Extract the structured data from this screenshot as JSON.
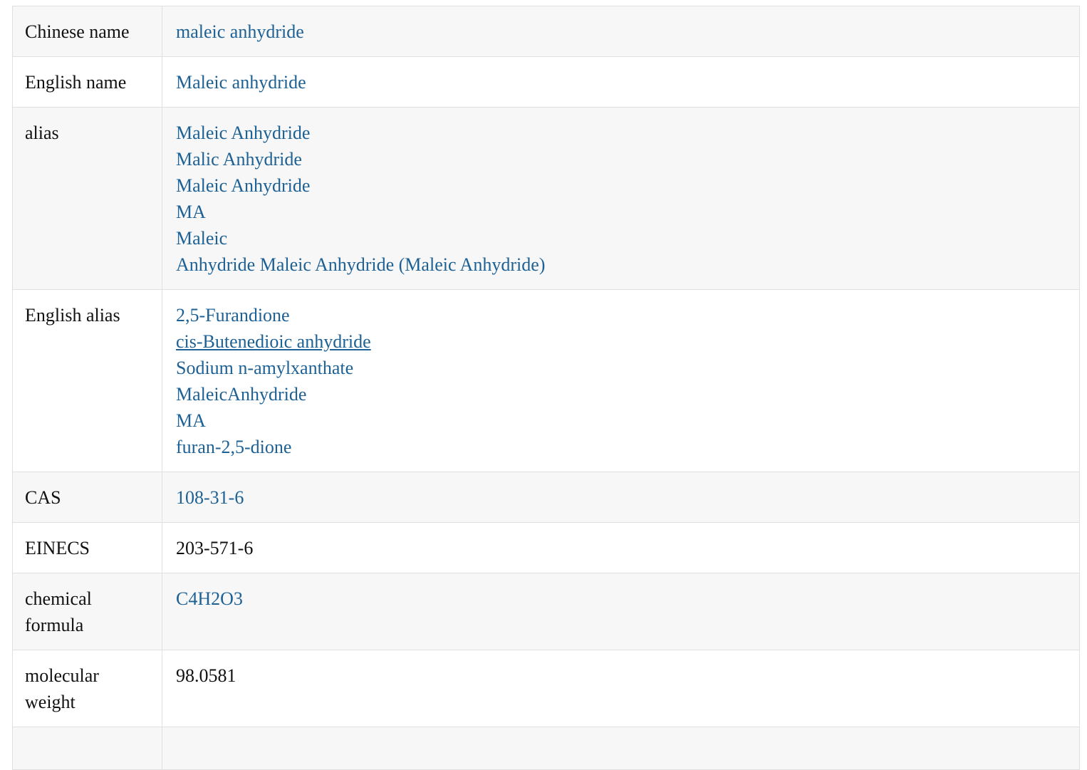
{
  "colors": {
    "link": "#1d6195",
    "text": "#111111",
    "alt_row_bg": "#f7f7f7",
    "border": "#e0e0e0"
  },
  "table": {
    "rows": [
      {
        "label": "Chinese name",
        "values": [
          {
            "text": "maleic anhydride",
            "link": true
          }
        ]
      },
      {
        "label": "English name",
        "values": [
          {
            "text": "Maleic anhydride",
            "link": true
          }
        ]
      },
      {
        "label": "alias",
        "values": [
          {
            "text": "Maleic Anhydride",
            "link": true
          },
          {
            "text": "Malic Anhydride",
            "link": true
          },
          {
            "text": "Maleic Anhydride",
            "link": true
          },
          {
            "text": "MA",
            "link": true
          },
          {
            "text": "Maleic",
            "link": true
          },
          {
            "text": "Anhydride Maleic Anhydride (Maleic Anhydride)",
            "link": true
          }
        ]
      },
      {
        "label": "English alias",
        "values": [
          {
            "text": "2,5-Furandione",
            "link": true
          },
          {
            "text": "cis-Butenedioic anhydride",
            "link": true,
            "underline": true
          },
          {
            "text": "Sodium n-amylxanthate",
            "link": true
          },
          {
            "text": "MaleicAnhydride",
            "link": true
          },
          {
            "text": "MA",
            "link": true
          },
          {
            "text": "furan-2,5-dione",
            "link": true
          }
        ]
      },
      {
        "label": "CAS",
        "values": [
          {
            "text": "108-31-6",
            "link": true
          }
        ]
      },
      {
        "label": "EINECS",
        "values": [
          {
            "text": "203-571-6",
            "link": false
          }
        ]
      },
      {
        "label": "chemical formula",
        "values": [
          {
            "text": "C4H2O3",
            "link": true
          }
        ]
      },
      {
        "label": "molecular weight",
        "values": [
          {
            "text": "98.0581",
            "link": false
          }
        ]
      },
      {
        "label": "",
        "values": []
      }
    ]
  }
}
